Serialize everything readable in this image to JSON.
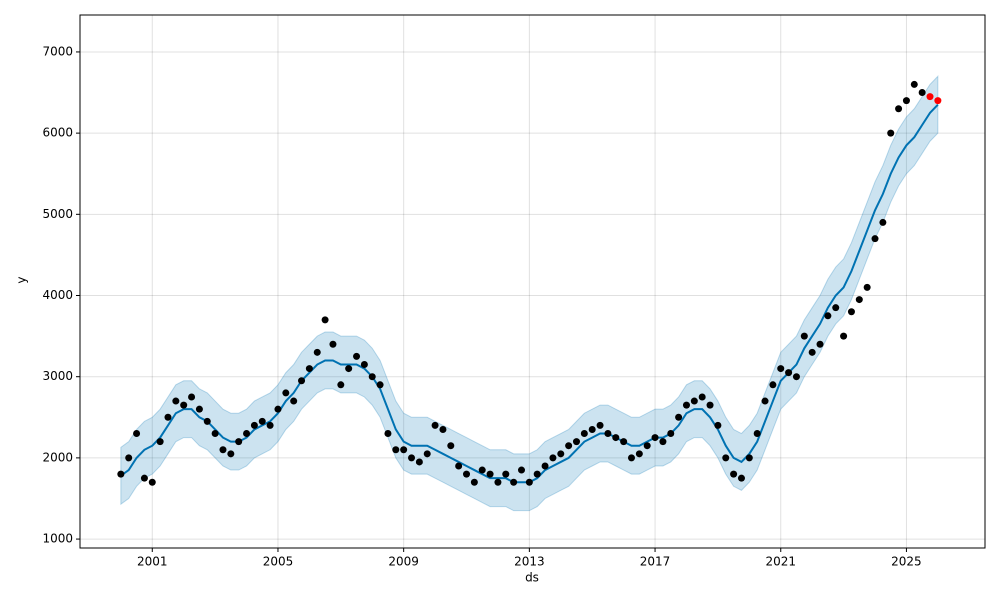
{
  "chart_data": {
    "type": "line",
    "xlabel": "ds",
    "ylabel": "y",
    "xlim": [
      1998.7,
      2027.5
    ],
    "ylim": [
      890,
      7455
    ],
    "xticks": [
      2001,
      2005,
      2009,
      2013,
      2017,
      2021,
      2025
    ],
    "yticks": [
      1000,
      2000,
      3000,
      4000,
      5000,
      6000,
      7000
    ],
    "grid": true,
    "x": [
      2000,
      2000.25,
      2000.5,
      2000.75,
      2001,
      2001.25,
      2001.5,
      2001.75,
      2002,
      2002.25,
      2002.5,
      2002.75,
      2003,
      2003.25,
      2003.5,
      2003.75,
      2004,
      2004.25,
      2004.5,
      2004.75,
      2005,
      2005.25,
      2005.5,
      2005.75,
      2006,
      2006.25,
      2006.5,
      2006.75,
      2007,
      2007.25,
      2007.5,
      2007.75,
      2008,
      2008.25,
      2008.5,
      2008.75,
      2009,
      2009.25,
      2009.5,
      2009.75,
      2010,
      2010.25,
      2010.5,
      2010.75,
      2011,
      2011.25,
      2011.5,
      2011.75,
      2012,
      2012.25,
      2012.5,
      2012.75,
      2013,
      2013.25,
      2013.5,
      2013.75,
      2014,
      2014.25,
      2014.5,
      2014.75,
      2015,
      2015.25,
      2015.5,
      2015.75,
      2016,
      2016.25,
      2016.5,
      2016.75,
      2017,
      2017.25,
      2017.5,
      2017.75,
      2018,
      2018.25,
      2018.5,
      2018.75,
      2019,
      2019.25,
      2019.5,
      2019.75,
      2020,
      2020.25,
      2020.5,
      2020.75,
      2021,
      2021.25,
      2021.5,
      2021.75,
      2022,
      2022.25,
      2022.5,
      2022.75,
      2023,
      2023.25,
      2023.5,
      2023.75,
      2024,
      2024.25,
      2024.5,
      2024.75,
      2025,
      2025.25,
      2025.5,
      2025.75,
      2026
    ],
    "series": [
      {
        "type": "band",
        "color": "#0072b2",
        "lower": [
          1430,
          1500,
          1650,
          1750,
          1800,
          1900,
          2050,
          2200,
          2250,
          2250,
          2150,
          2100,
          2000,
          1900,
          1850,
          1850,
          1900,
          2000,
          2050,
          2100,
          2200,
          2350,
          2450,
          2600,
          2700,
          2800,
          2850,
          2850,
          2800,
          2800,
          2800,
          2750,
          2650,
          2500,
          2250,
          2000,
          1850,
          1800,
          1800,
          1800,
          1750,
          1700,
          1650,
          1600,
          1550,
          1500,
          1450,
          1400,
          1400,
          1400,
          1350,
          1350,
          1350,
          1400,
          1500,
          1550,
          1600,
          1650,
          1750,
          1850,
          1900,
          1950,
          1950,
          1900,
          1850,
          1800,
          1800,
          1850,
          1900,
          1900,
          1950,
          2050,
          2200,
          2250,
          2250,
          2150,
          2000,
          1800,
          1650,
          1600,
          1700,
          1850,
          2100,
          2350,
          2600,
          2700,
          2800,
          3000,
          3150,
          3300,
          3500,
          3650,
          3750,
          3950,
          4200,
          4450,
          4700,
          4900,
          5150,
          5350,
          5500,
          5600,
          5750,
          5900,
          6000
        ],
        "upper": [
          2130,
          2200,
          2350,
          2450,
          2500,
          2600,
          2750,
          2900,
          2950,
          2950,
          2850,
          2800,
          2700,
          2600,
          2550,
          2550,
          2600,
          2700,
          2750,
          2800,
          2900,
          3050,
          3150,
          3300,
          3400,
          3500,
          3550,
          3550,
          3500,
          3500,
          3500,
          3450,
          3350,
          3200,
          2950,
          2700,
          2550,
          2500,
          2500,
          2500,
          2450,
          2400,
          2350,
          2300,
          2250,
          2200,
          2150,
          2100,
          2100,
          2100,
          2050,
          2050,
          2050,
          2100,
          2200,
          2250,
          2300,
          2350,
          2450,
          2550,
          2600,
          2650,
          2650,
          2600,
          2550,
          2500,
          2500,
          2550,
          2600,
          2600,
          2650,
          2750,
          2900,
          2950,
          2950,
          2850,
          2700,
          2500,
          2350,
          2300,
          2400,
          2550,
          2800,
          3050,
          3300,
          3400,
          3500,
          3700,
          3850,
          4000,
          4200,
          4350,
          4450,
          4650,
          4900,
          5150,
          5400,
          5600,
          5850,
          6050,
          6200,
          6300,
          6450,
          6600,
          6700
        ]
      },
      {
        "type": "line",
        "color": "#0072b2",
        "values": [
          1780,
          1850,
          2000,
          2100,
          2150,
          2250,
          2400,
          2550,
          2600,
          2600,
          2500,
          2450,
          2350,
          2250,
          2200,
          2200,
          2250,
          2350,
          2400,
          2450,
          2550,
          2700,
          2800,
          2950,
          3050,
          3150,
          3200,
          3200,
          3150,
          3150,
          3150,
          3100,
          3000,
          2850,
          2600,
          2350,
          2200,
          2150,
          2150,
          2150,
          2100,
          2050,
          2000,
          1950,
          1900,
          1850,
          1800,
          1750,
          1750,
          1750,
          1700,
          1700,
          1700,
          1750,
          1850,
          1900,
          1950,
          2000,
          2100,
          2200,
          2250,
          2300,
          2300,
          2250,
          2200,
          2150,
          2150,
          2200,
          2250,
          2250,
          2300,
          2400,
          2550,
          2600,
          2600,
          2500,
          2350,
          2150,
          2000,
          1950,
          2050,
          2200,
          2450,
          2700,
          2950,
          3050,
          3150,
          3350,
          3500,
          3650,
          3850,
          4000,
          4100,
          4300,
          4550,
          4800,
          5050,
          5250,
          5500,
          5700,
          5850,
          5950,
          6100,
          6250,
          6350
        ]
      },
      {
        "type": "scatter",
        "color": "#000000",
        "values": [
          1800,
          2000,
          2300,
          1750,
          1700,
          2200,
          2500,
          2700,
          2650,
          2750,
          2600,
          2450,
          2300,
          2100,
          2050,
          2200,
          2300,
          2400,
          2450,
          2400,
          2600,
          2800,
          2700,
          2950,
          3100,
          3300,
          3700,
          3400,
          2900,
          3100,
          3250,
          3150,
          3000,
          2900,
          2300,
          2100,
          2100,
          2000,
          1950,
          2050,
          2400,
          2350,
          2150,
          1900,
          1800,
          1700,
          1850,
          1800,
          1700,
          1800,
          1700,
          1850,
          1700,
          1800,
          1900,
          2000,
          2050,
          2150,
          2200,
          2300,
          2350,
          2400,
          2300,
          2250,
          2200,
          2000,
          2050,
          2150,
          2250,
          2200,
          2300,
          2500,
          2650,
          2700,
          2750,
          2650,
          2400,
          2000,
          1800,
          1750,
          2000,
          2300,
          2700,
          2900,
          3100,
          3050,
          3000,
          3500,
          3300,
          3400,
          3750,
          3850,
          3500,
          3800,
          3950,
          4100,
          4700,
          4900,
          6000,
          6300,
          6400,
          6600,
          6500,
          null,
          null
        ]
      },
      {
        "type": "scatter",
        "color": "#ff0000",
        "x": [
          2025.75,
          2026
        ],
        "values": [
          6450,
          6400
        ]
      }
    ]
  }
}
